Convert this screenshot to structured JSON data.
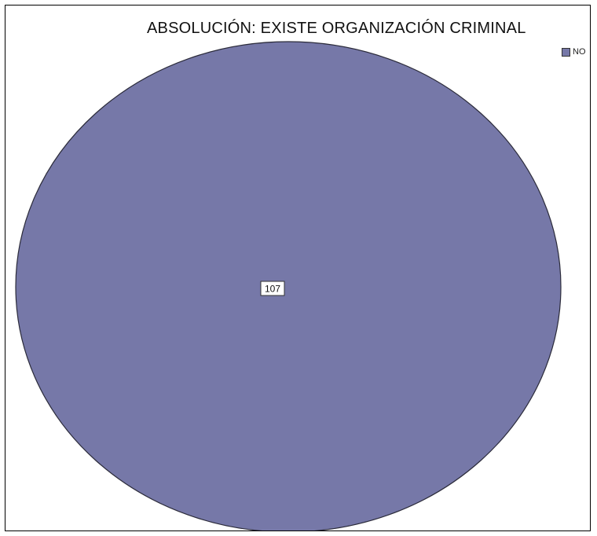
{
  "chart_data": {
    "type": "pie",
    "title": "ABSOLUCIÓN: EXISTE ORGANIZACIÓN CRIMINAL",
    "categories": [
      "NO"
    ],
    "values": [
      107
    ],
    "data_labels": [
      "107"
    ],
    "colors": [
      "#7678a8"
    ],
    "legend_position": "top-right",
    "legend": [
      {
        "label": "NO",
        "color": "#7678a8"
      }
    ]
  }
}
